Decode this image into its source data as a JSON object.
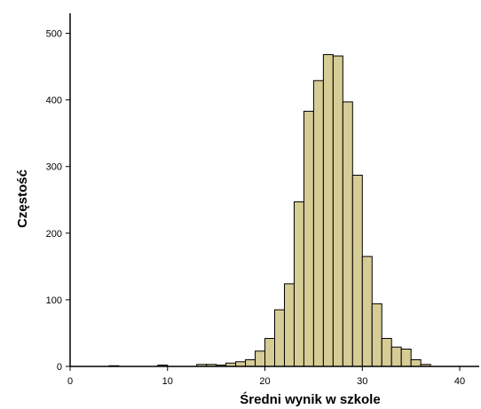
{
  "chart_data": {
    "type": "bar",
    "title": "",
    "xlabel": "Średni wynik w szkole",
    "ylabel": "Częstość",
    "xlim": [
      0,
      42
    ],
    "ylim": [
      0,
      530
    ],
    "x_ticks": [
      0,
      10,
      20,
      30,
      40
    ],
    "y_ticks": [
      0,
      100,
      200,
      300,
      400,
      500
    ],
    "bin_width": 1,
    "bar_color": "#d6cc95",
    "bar_edge_color": "#000000",
    "bins": [
      {
        "x0": 4,
        "x1": 5,
        "value": 1
      },
      {
        "x0": 5,
        "x1": 6,
        "value": 0
      },
      {
        "x0": 6,
        "x1": 7,
        "value": 0
      },
      {
        "x0": 7,
        "x1": 8,
        "value": 0
      },
      {
        "x0": 8,
        "x1": 9,
        "value": 0
      },
      {
        "x0": 9,
        "x1": 10,
        "value": 2
      },
      {
        "x0": 10,
        "x1": 11,
        "value": 0
      },
      {
        "x0": 11,
        "x1": 12,
        "value": 0
      },
      {
        "x0": 12,
        "x1": 13,
        "value": 0
      },
      {
        "x0": 13,
        "x1": 14,
        "value": 3
      },
      {
        "x0": 14,
        "x1": 15,
        "value": 3
      },
      {
        "x0": 15,
        "x1": 16,
        "value": 2
      },
      {
        "x0": 16,
        "x1": 17,
        "value": 5
      },
      {
        "x0": 17,
        "x1": 18,
        "value": 7
      },
      {
        "x0": 18,
        "x1": 19,
        "value": 10
      },
      {
        "x0": 19,
        "x1": 20,
        "value": 23
      },
      {
        "x0": 20,
        "x1": 21,
        "value": 42
      },
      {
        "x0": 21,
        "x1": 22,
        "value": 85
      },
      {
        "x0": 22,
        "x1": 23,
        "value": 124
      },
      {
        "x0": 23,
        "x1": 24,
        "value": 247
      },
      {
        "x0": 24,
        "x1": 25,
        "value": 383
      },
      {
        "x0": 25,
        "x1": 26,
        "value": 429
      },
      {
        "x0": 26,
        "x1": 27,
        "value": 468
      },
      {
        "x0": 27,
        "x1": 28,
        "value": 466
      },
      {
        "x0": 28,
        "x1": 29,
        "value": 397
      },
      {
        "x0": 29,
        "x1": 30,
        "value": 287
      },
      {
        "x0": 30,
        "x1": 31,
        "value": 165
      },
      {
        "x0": 31,
        "x1": 32,
        "value": 94
      },
      {
        "x0": 32,
        "x1": 33,
        "value": 42
      },
      {
        "x0": 33,
        "x1": 34,
        "value": 29
      },
      {
        "x0": 34,
        "x1": 35,
        "value": 26
      },
      {
        "x0": 35,
        "x1": 36,
        "value": 10
      },
      {
        "x0": 36,
        "x1": 37,
        "value": 3
      }
    ]
  }
}
